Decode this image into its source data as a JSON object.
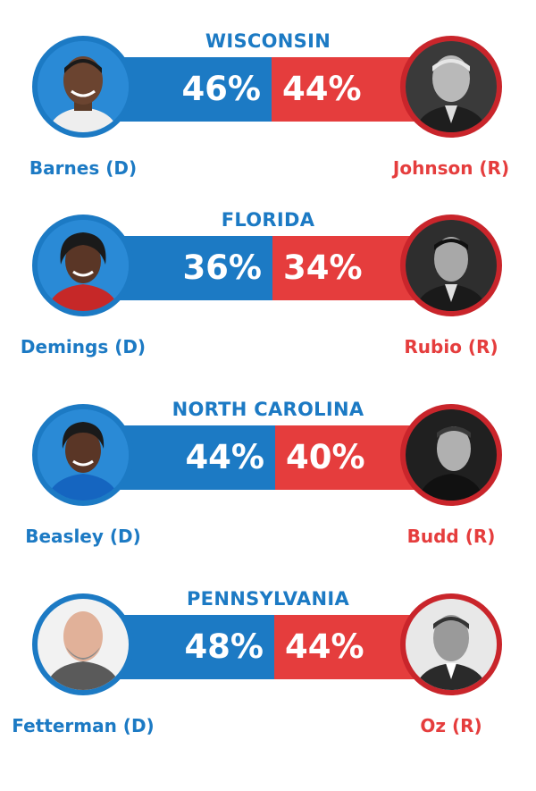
{
  "colors": {
    "democrat": "#1c7ac4",
    "republican": "#e53d3d"
  },
  "chart_data": {
    "type": "bar",
    "races": [
      {
        "state": "WISCONSIN",
        "dem": {
          "name": "Barnes (D)",
          "pct": 46,
          "label": "46%"
        },
        "rep": {
          "name": "Johnson (R)",
          "pct": 44,
          "label": "44%"
        }
      },
      {
        "state": "FLORIDA",
        "dem": {
          "name": "Demings (D)",
          "pct": 36,
          "label": "36%"
        },
        "rep": {
          "name": "Rubio (R)",
          "pct": 34,
          "label": "34%"
        }
      },
      {
        "state": "NORTH CAROLINA",
        "dem": {
          "name": "Beasley (D)",
          "pct": 44,
          "label": "44%"
        },
        "rep": {
          "name": "Budd (R)",
          "pct": 40,
          "label": "40%"
        }
      },
      {
        "state": "PENNSYLVANIA",
        "dem": {
          "name": "Fetterman (D)",
          "pct": 48,
          "label": "48%"
        },
        "rep": {
          "name": "Oz (R)",
          "pct": 44,
          "label": "44%"
        }
      }
    ]
  }
}
